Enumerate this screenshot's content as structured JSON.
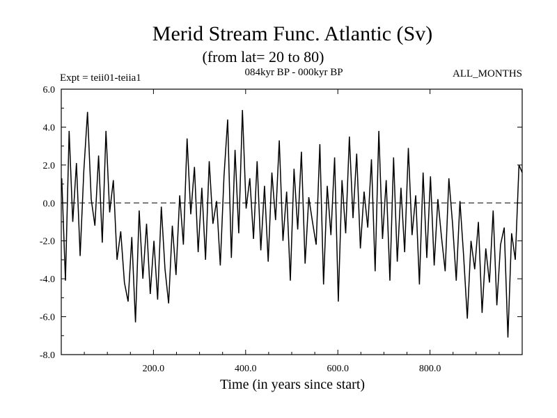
{
  "chart_data": {
    "type": "line",
    "title": "Merid Stream Func. Atlantic (Sv)",
    "subtitle": "(from lat= 20 to 80)",
    "annotations": {
      "experiment": "Expt = teii01-teiia1",
      "period": "084kyr BP - 000kyr BP",
      "months": "ALL_MONTHS"
    },
    "xlabel": "Time (in years since start)",
    "ylabel": "",
    "xlim": [
      0,
      1000
    ],
    "ylim": [
      -8.0,
      6.0
    ],
    "x_ticks": [
      200,
      400,
      600,
      800
    ],
    "x_tick_labels": [
      "200.0",
      "400.0",
      "600.0",
      "800.0"
    ],
    "y_ticks": [
      -8,
      -6,
      -4,
      -2,
      0,
      2,
      4,
      6
    ],
    "y_tick_labels": [
      "-8.0",
      "-6.0",
      "-4.0",
      "-2.0",
      "0.0",
      "2.0",
      "4.0",
      "6.0"
    ],
    "reference_line": 0.0,
    "grid": false,
    "legend": "none",
    "series": [
      {
        "x": [
          1,
          9,
          17,
          25,
          33,
          41,
          49,
          57,
          65,
          73,
          81,
          89,
          97,
          105,
          113,
          121,
          129,
          137,
          145,
          153,
          161,
          169,
          177,
          185,
          193,
          201,
          209,
          217,
          225,
          233,
          241,
          249,
          257,
          265,
          273,
          281,
          289,
          297,
          305,
          313,
          321,
          329,
          337,
          345,
          353,
          361,
          369,
          377,
          385,
          393,
          401,
          409,
          417,
          425,
          433,
          441,
          449,
          457,
          465,
          473,
          481,
          489,
          497,
          505,
          513,
          521,
          529,
          537,
          545,
          553,
          561,
          569,
          577,
          585,
          593,
          601,
          609,
          617,
          625,
          633,
          641,
          649,
          657,
          665,
          673,
          681,
          689,
          697,
          705,
          713,
          721,
          729,
          737,
          745,
          753,
          761,
          769,
          777,
          785,
          793,
          801,
          809,
          817,
          825,
          833,
          841,
          849,
          857,
          865,
          873,
          881,
          889,
          897,
          905,
          913,
          921,
          929,
          937,
          945,
          953,
          961,
          969,
          977,
          985,
          993,
          1000
        ],
        "values": [
          1.3,
          -4.1,
          3.8,
          -1.0,
          2.1,
          -2.8,
          1.7,
          4.8,
          0.2,
          -1.2,
          2.5,
          -2.1,
          3.8,
          -0.5,
          1.2,
          -3.0,
          -1.5,
          -4.2,
          -5.2,
          -1.8,
          -6.3,
          -0.4,
          -4.0,
          -1.1,
          -4.8,
          -2.0,
          -5.1,
          -0.2,
          -3.5,
          -5.3,
          -1.2,
          -3.8,
          0.4,
          -2.2,
          3.4,
          -0.6,
          1.9,
          -2.6,
          0.8,
          -3.0,
          2.2,
          -1.1,
          0.1,
          -3.3,
          1.4,
          4.4,
          -2.9,
          2.8,
          -1.6,
          4.9,
          -0.3,
          1.3,
          -1.9,
          2.2,
          -2.5,
          0.9,
          -3.1,
          1.6,
          -0.9,
          3.3,
          -2.0,
          0.6,
          -4.1,
          1.8,
          -1.4,
          2.7,
          -3.2,
          0.3,
          -1.0,
          -2.2,
          3.1,
          -4.3,
          0.9,
          -1.7,
          2.4,
          -5.2,
          1.2,
          -1.6,
          3.5,
          -0.8,
          2.6,
          -2.4,
          0.6,
          -1.3,
          2.3,
          -3.6,
          3.8,
          -1.9,
          1.2,
          -4.1,
          2.4,
          -3.1,
          0.8,
          -2.6,
          2.9,
          -1.7,
          0.4,
          -4.3,
          1.6,
          -2.9,
          1.4,
          -3.3,
          0.2,
          -1.8,
          -3.6,
          1.3,
          -1.1,
          -4.1,
          0.1,
          -2.8,
          -6.1,
          -2.0,
          -3.5,
          -1.0,
          -5.8,
          -2.4,
          -4.2,
          -0.4,
          -5.4,
          -2.2,
          -1.3,
          -7.1,
          -1.6,
          -3.0,
          2.0,
          1.6
        ]
      }
    ]
  }
}
